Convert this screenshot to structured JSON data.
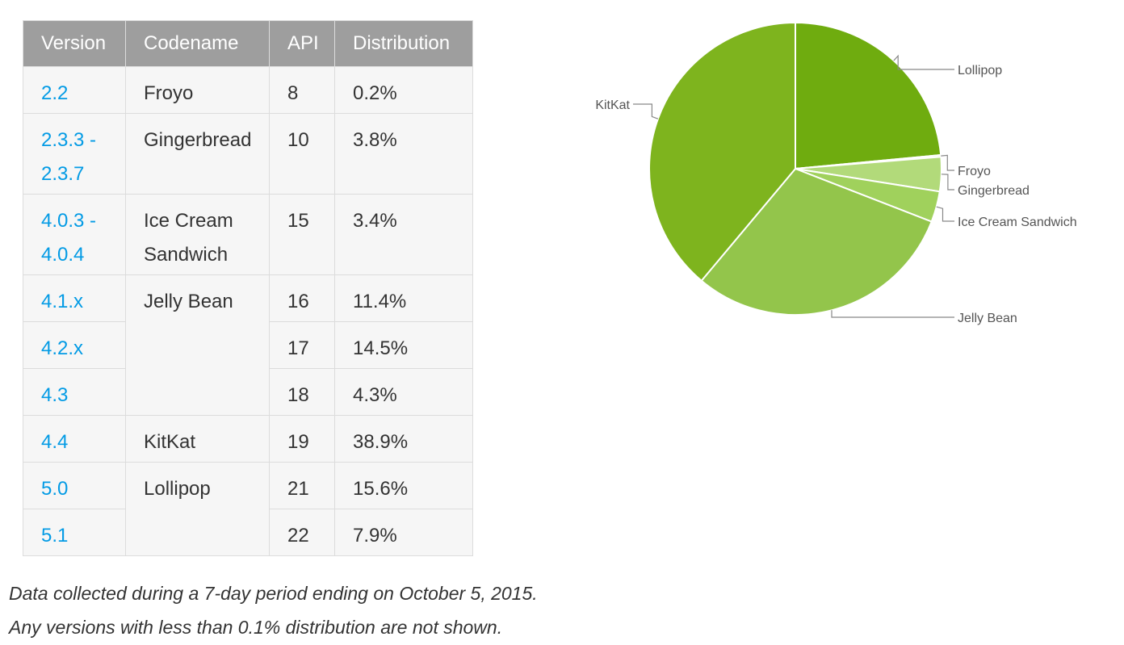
{
  "table": {
    "headers": [
      "Version",
      "Codename",
      "API",
      "Distribution"
    ],
    "rows": [
      {
        "version": "2.2",
        "codename": "Froyo",
        "api": "8",
        "dist": "0.2%"
      },
      {
        "version": "2.3.3 - 2.3.7",
        "codename": "Gingerbread",
        "api": "10",
        "dist": "3.8%"
      },
      {
        "version": "4.0.3 - 4.0.4",
        "codename": "Ice Cream Sandwich",
        "api": "15",
        "dist": "3.4%"
      },
      {
        "version": "4.1.x",
        "codename": "Jelly Bean",
        "api": "16",
        "dist": "11.4%"
      },
      {
        "version": "4.2.x",
        "codename": "",
        "api": "17",
        "dist": "14.5%"
      },
      {
        "version": "4.3",
        "codename": "",
        "api": "18",
        "dist": "4.3%"
      },
      {
        "version": "4.4",
        "codename": "KitKat",
        "api": "19",
        "dist": "38.9%"
      },
      {
        "version": "5.0",
        "codename": "Lollipop",
        "api": "21",
        "dist": "15.6%"
      },
      {
        "version": "5.1",
        "codename": "",
        "api": "22",
        "dist": "7.9%"
      }
    ]
  },
  "notes": {
    "line1": "Data collected during a 7-day period ending on October 5, 2015.",
    "line2": "Any versions with less than 0.1% distribution are not shown."
  },
  "chart_data": {
    "type": "pie",
    "title": "",
    "legend": "none",
    "slices": [
      {
        "label": "Lollipop",
        "value": 23.5,
        "color": "#6fac0f"
      },
      {
        "label": "Froyo",
        "value": 0.2,
        "color": "#c7e39a"
      },
      {
        "label": "Gingerbread",
        "value": 3.8,
        "color": "#b2da7a"
      },
      {
        "label": "Ice Cream Sandwich",
        "value": 3.4,
        "color": "#a0d15c"
      },
      {
        "label": "Jelly Bean",
        "value": 30.2,
        "color": "#93c54b"
      },
      {
        "label": "KitKat",
        "value": 38.9,
        "color": "#7eb41e"
      }
    ]
  }
}
